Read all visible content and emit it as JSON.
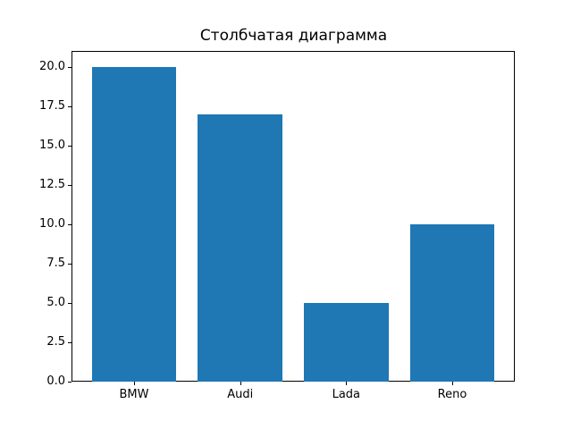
{
  "chart_data": {
    "type": "bar",
    "title": "Столбчатая диаграмма",
    "categories": [
      "BMW",
      "Audi",
      "Lada",
      "Reno"
    ],
    "values": [
      20,
      17,
      5,
      10
    ],
    "xlabel": "",
    "ylabel": "",
    "ylim": [
      0,
      21
    ],
    "ytick_labels": [
      "0.0",
      "2.5",
      "5.0",
      "7.5",
      "10.0",
      "12.5",
      "15.0",
      "17.5",
      "20.0"
    ],
    "ytick_values": [
      0,
      2.5,
      5,
      7.5,
      10,
      12.5,
      15,
      17.5,
      20
    ],
    "grid": false,
    "legend": null,
    "bar_color": "#1f77b4",
    "spine_color": "#000000",
    "text_color": "#000000",
    "background_color": "#ffffff"
  }
}
